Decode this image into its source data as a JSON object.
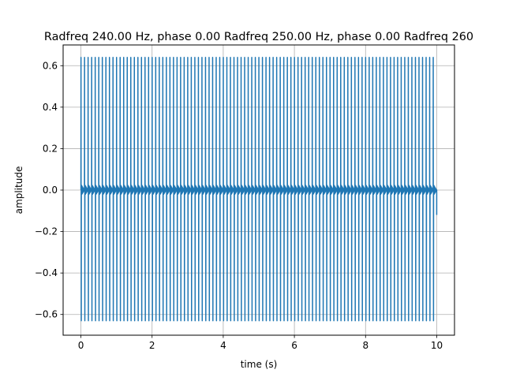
{
  "chart_data": {
    "type": "line",
    "title": "Radfreq 240.00 Hz, phase 0.00 Radfreq 250.00 Hz, phase 0.00 Radfreq 260",
    "xlabel": "time (s)",
    "ylabel": "amplitude",
    "xlim": [
      -0.5,
      10.5
    ],
    "ylim": [
      -0.7,
      0.7
    ],
    "xticks": [
      0,
      2,
      4,
      6,
      8,
      10
    ],
    "xtick_labels": [
      "0",
      "2",
      "4",
      "6",
      "8",
      "10"
    ],
    "yticks": [
      -0.6,
      -0.4,
      -0.2,
      0.0,
      0.2,
      0.4,
      0.6
    ],
    "ytick_labels": [
      "−0.6",
      "−0.4",
      "−0.2",
      "0.0",
      "0.2",
      "0.4",
      "0.6"
    ],
    "grid": true,
    "series": [
      {
        "color": "#1f77b4",
        "duration_s": 10,
        "beat_period_s": 0.1,
        "peak_max": 0.64,
        "peak_min": -0.63,
        "baseline_band": [
          -0.02,
          0.02
        ]
      }
    ]
  }
}
